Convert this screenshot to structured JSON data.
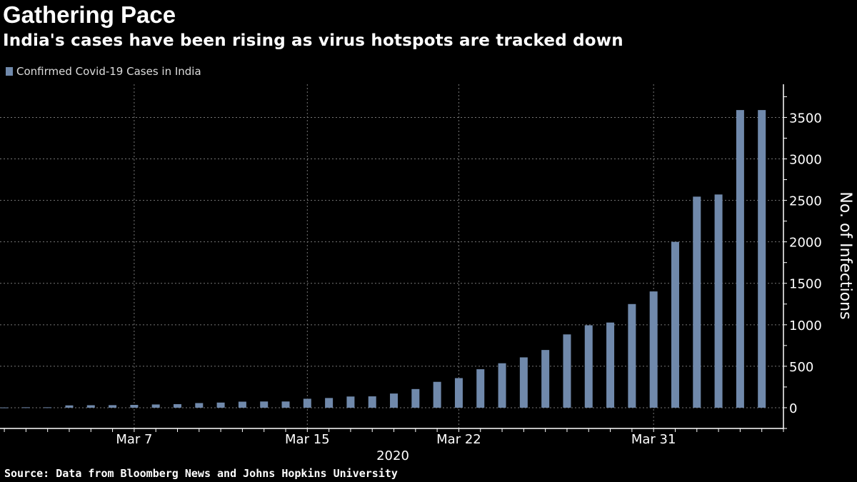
{
  "header": {
    "title": "Gathering Pace",
    "subtitle": "India's cases have been rising as virus hotspots are tracked down"
  },
  "footer": {
    "source": "Source: Data from Bloomberg News and Johns Hopkins University"
  },
  "colors": {
    "bar": "#7089ab",
    "background": "#000000",
    "grid": "#777777"
  },
  "chart_data": {
    "type": "bar",
    "title": "Gathering Pace",
    "subtitle": "India's cases have been rising as virus hotspots are tracked down",
    "legend": {
      "position": "top-left",
      "entries": [
        "Confirmed Covid-19 Cases in India"
      ]
    },
    "xlabel": "2020",
    "ylabel": "No. of Infections",
    "y_axis_side": "right",
    "ylim": [
      -250,
      3900
    ],
    "xlim": [
      "2020-02-29",
      "2020-04-06"
    ],
    "grid": true,
    "x_ticks": [
      {
        "date": "2020-03-07",
        "label": "Mar 7"
      },
      {
        "date": "2020-03-15",
        "label": "Mar 15"
      },
      {
        "date": "2020-03-22",
        "label": "Mar 22"
      },
      {
        "date": "2020-03-31",
        "label": "Mar 31"
      }
    ],
    "y_ticks": [
      0,
      500,
      1000,
      1500,
      2000,
      2500,
      3000,
      3500
    ],
    "series": [
      {
        "name": "Confirmed Covid-19 Cases in India",
        "x": [
          "2020-03-01",
          "2020-03-02",
          "2020-03-03",
          "2020-03-04",
          "2020-03-05",
          "2020-03-06",
          "2020-03-07",
          "2020-03-08",
          "2020-03-09",
          "2020-03-10",
          "2020-03-11",
          "2020-03-12",
          "2020-03-13",
          "2020-03-14",
          "2020-03-15",
          "2020-03-16",
          "2020-03-17",
          "2020-03-18",
          "2020-03-19",
          "2020-03-20",
          "2020-03-21",
          "2020-03-22",
          "2020-03-23",
          "2020-03-24",
          "2020-03-25",
          "2020-03-26",
          "2020-03-27",
          "2020-03-28",
          "2020-03-29",
          "2020-03-30",
          "2020-03-31",
          "2020-04-01",
          "2020-04-02",
          "2020-04-03",
          "2020-04-04",
          "2020-04-05"
        ],
        "values": [
          3,
          5,
          5,
          28,
          30,
          31,
          34,
          39,
          43,
          56,
          62,
          73,
          75,
          75,
          108,
          117,
          135,
          137,
          171,
          225,
          312,
          357,
          464,
          536,
          607,
          696,
          884,
          994,
          1027,
          1250,
          1402,
          2000,
          2545,
          2571,
          3589,
          3589
        ]
      }
    ]
  }
}
